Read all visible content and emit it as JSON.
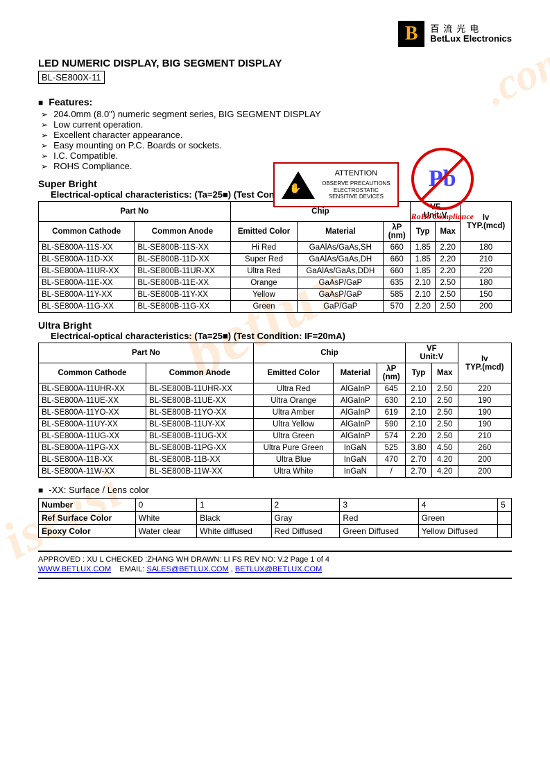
{
  "logo": {
    "cn": "百流光电",
    "en": "BetLux Electronics"
  },
  "title": "LED NUMERIC DISPLAY,   BIG SEGMENT DISPLAY",
  "model": "BL-SE800X-11",
  "features_label": "Features:",
  "features": [
    "204.0mm (8.0\") numeric segment series, BIG SEGMENT DISPLAY",
    "Low current operation.",
    "Excellent character appearance.",
    "Easy mounting on P.C. Boards or sockets.",
    "I.C. Compatible.",
    "ROHS Compliance."
  ],
  "esd": {
    "attention": "ATTENTION",
    "line1": "OBSERVE PRECAUTIONS",
    "line2": "ELECTROSTATIC",
    "line3": "SENSITIVE DEVICES"
  },
  "pb": {
    "symbol": "Pb",
    "label": "RoHs Compliance"
  },
  "super": {
    "heading": "Super Bright",
    "sub": "Electrical-optical characteristics: (Ta=25■)   (Test Condition: IF=20mA)",
    "headers": {
      "partno": "Part No",
      "chip": "Chip",
      "vf": "VF",
      "vfunit": "Unit:V",
      "iv": "Iv",
      "ivunit": "TYP.(mcd)",
      "cathode": "Common Cathode",
      "anode": "Common Anode",
      "emitted": "Emitted Color",
      "material": "Material",
      "lp": "λP",
      "nm": "(nm)",
      "typ": "Typ",
      "max": "Max"
    },
    "rows": [
      {
        "c": "BL-SE800A-11S-XX",
        "a": "BL-SE800B-11S-XX",
        "color": "Hi Red",
        "mat": "GaAlAs/GaAs,SH",
        "lp": "660",
        "typ": "1.85",
        "max": "2.20",
        "iv": "180"
      },
      {
        "c": "BL-SE800A-11D-XX",
        "a": "BL-SE800B-11D-XX",
        "color": "Super Red",
        "mat": "GaAlAs/GaAs,DH",
        "lp": "660",
        "typ": "1.85",
        "max": "2.20",
        "iv": "210"
      },
      {
        "c": "BL-SE800A-11UR-XX",
        "a": "BL-SE800B-11UR-XX",
        "color": "Ultra Red",
        "mat": "GaAlAs/GaAs,DDH",
        "lp": "660",
        "typ": "1.85",
        "max": "2.20",
        "iv": "220"
      },
      {
        "c": "BL-SE800A-11E-XX",
        "a": "BL-SE800B-11E-XX",
        "color": "Orange",
        "mat": "GaAsP/GaP",
        "lp": "635",
        "typ": "2.10",
        "max": "2.50",
        "iv": "180"
      },
      {
        "c": "BL-SE800A-11Y-XX",
        "a": "BL-SE800B-11Y-XX",
        "color": "Yellow",
        "mat": "GaAsP/GaP",
        "lp": "585",
        "typ": "2.10",
        "max": "2.50",
        "iv": "150"
      },
      {
        "c": "BL-SE800A-11G-XX",
        "a": "BL-SE800B-11G-XX",
        "color": "Green",
        "mat": "GaP/GaP",
        "lp": "570",
        "typ": "2.20",
        "max": "2.50",
        "iv": "200"
      }
    ]
  },
  "ultra": {
    "heading": "Ultra Bright",
    "sub": "Electrical-optical characteristics: (Ta=25■)   (Test Condition: IF=20mA)",
    "headers": {
      "partno": "Part No",
      "chip": "Chip",
      "vf": "VF",
      "vfunit": "Unit:V",
      "iv": "Iv",
      "ivunit": "TYP.(mcd)",
      "cathode": "Common Cathode",
      "anode": "Common Anode",
      "emitted": "Emitted Color",
      "material": "Material",
      "lp": "λP",
      "nm": "(nm)",
      "typ": "Typ",
      "max": "Max"
    },
    "rows": [
      {
        "c": "BL-SE800A-11UHR-XX",
        "a": "BL-SE800B-11UHR-XX",
        "color": "Ultra Red",
        "mat": "AlGaInP",
        "lp": "645",
        "typ": "2.10",
        "max": "2.50",
        "iv": "220"
      },
      {
        "c": "BL-SE800A-11UE-XX",
        "a": "BL-SE800B-11UE-XX",
        "color": "Ultra Orange",
        "mat": "AlGaInP",
        "lp": "630",
        "typ": "2.10",
        "max": "2.50",
        "iv": "190"
      },
      {
        "c": "BL-SE800A-11YO-XX",
        "a": "BL-SE800B-11YO-XX",
        "color": "Ultra Amber",
        "mat": "AlGaInP",
        "lp": "619",
        "typ": "2.10",
        "max": "2.50",
        "iv": "190"
      },
      {
        "c": "BL-SE800A-11UY-XX",
        "a": "BL-SE800B-11UY-XX",
        "color": "Ultra Yellow",
        "mat": "AlGaInP",
        "lp": "590",
        "typ": "2.10",
        "max": "2.50",
        "iv": "190"
      },
      {
        "c": "BL-SE800A-11UG-XX",
        "a": "BL-SE800B-11UG-XX",
        "color": "Ultra Green",
        "mat": "AlGaInP",
        "lp": "574",
        "typ": "2.20",
        "max": "2.50",
        "iv": "210"
      },
      {
        "c": "BL-SE800A-11PG-XX",
        "a": "BL-SE800B-11PG-XX",
        "color": "Ultra Pure Green",
        "mat": "InGaN",
        "lp": "525",
        "typ": "3.80",
        "max": "4.50",
        "iv": "260"
      },
      {
        "c": "BL-SE800A-11B-XX",
        "a": "BL-SE800B-11B-XX",
        "color": "Ultra Blue",
        "mat": "InGaN",
        "lp": "470",
        "typ": "2.70",
        "max": "4.20",
        "iv": "200"
      },
      {
        "c": "BL-SE800A-11W-XX",
        "a": "BL-SE800B-11W-XX",
        "color": "Ultra White",
        "mat": "InGaN",
        "lp": "/",
        "typ": "2.70",
        "max": "4.20",
        "iv": "200"
      }
    ]
  },
  "lens": {
    "note": "-XX: Surface / Lens color",
    "headers": {
      "num": "Number",
      "ref": "Ref Surface Color",
      "epoxy": "Epoxy Color"
    },
    "cols": [
      "0",
      "1",
      "2",
      "3",
      "4",
      "5"
    ],
    "ref": [
      "White",
      "Black",
      "Gray",
      "Red",
      "Green",
      ""
    ],
    "epoxy": [
      "Water clear",
      "White diffused",
      "Red Diffused",
      "Green Diffused",
      "Yellow Diffused",
      ""
    ]
  },
  "footer": {
    "approved": "APPROVED : XU L    CHECKED :ZHANG WH    DRAWN: LI FS       REV NO: V.2      Page 1 of 4",
    "site": "WWW.BETLUX.COM",
    "email_lbl": "EMAIL:",
    "email1": "SALES@BETLUX.COM",
    "comma": " , ",
    "email2": "BETLUX@BETLUX.COM"
  },
  "watermarks": {
    "wm1": ".com",
    "wm2": "betlux",
    "wm3": "iseesi"
  }
}
